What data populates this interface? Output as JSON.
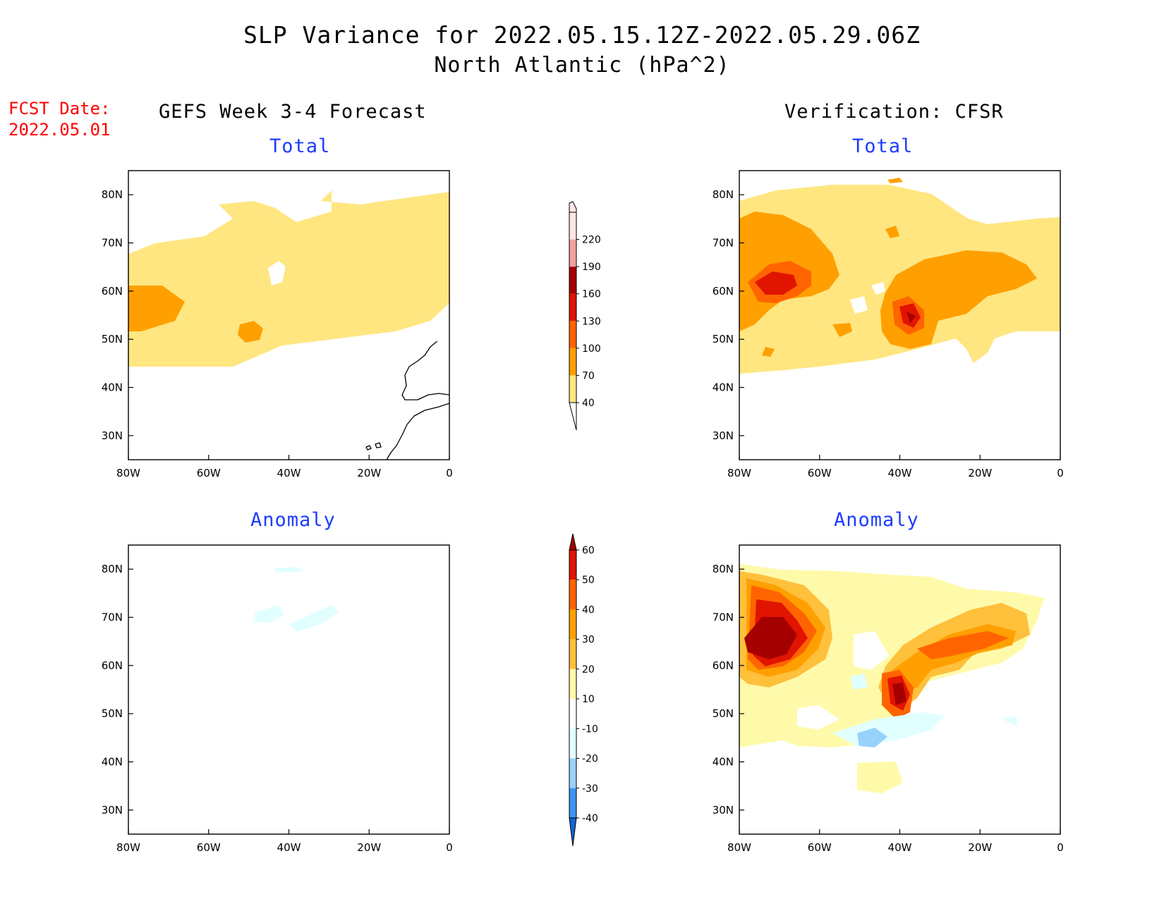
{
  "title": "SLP Variance for 2022.05.15.12Z-2022.05.29.06Z",
  "subtitle": "North Atlantic (hPa^2)",
  "fcst_label": "FCST Date:",
  "fcst_date": "2022.05.01",
  "left_header": "GEFS Week 3-4 Forecast",
  "right_header": "Verification: CFSR",
  "panels": {
    "tl": {
      "label": "Total"
    },
    "tr": {
      "label": "Total"
    },
    "bl": {
      "label": "Anomaly"
    },
    "br": {
      "label": "Anomaly"
    }
  },
  "axes": {
    "lon_labels": [
      "80W",
      "60W",
      "40W",
      "20W",
      "0"
    ],
    "lat_labels": [
      "80N",
      "70N",
      "60N",
      "50N",
      "40N",
      "30N"
    ],
    "lon_range": [
      -80,
      0
    ],
    "lat_range": [
      25,
      85
    ]
  },
  "colorbar_total": {
    "levels": [
      "40",
      "70",
      "100",
      "130",
      "160",
      "190",
      "220"
    ],
    "colors": [
      "#ffe680",
      "#ffa000",
      "#ff6400",
      "#e11400",
      "#a50000",
      "#f4a0a0",
      "#ffe6e6"
    ]
  },
  "colorbar_anom": {
    "levels": [
      "60",
      "50",
      "40",
      "30",
      "20",
      "10",
      "-10",
      "-20",
      "-30",
      "-40"
    ],
    "colors": [
      "#1464d2",
      "#3c96f0",
      "#96d2fa",
      "#e1ffff",
      "#ffffff",
      "#fffaaa",
      "#ffc03c",
      "#ffa000",
      "#ff6400",
      "#e11400",
      "#a50000"
    ]
  },
  "palette": {
    "yellow": "#ffe680",
    "lightyellow": "#fffaaa",
    "orange": "#ffa000",
    "lightorange": "#ffc03c",
    "darkorange": "#ff6400",
    "red": "#e11400",
    "darkred": "#a50000",
    "lightblue": "#e1ffff",
    "blue": "#96d2fa",
    "title_blue": "#1c3cff",
    "fcst_red": "#ff0000"
  }
}
